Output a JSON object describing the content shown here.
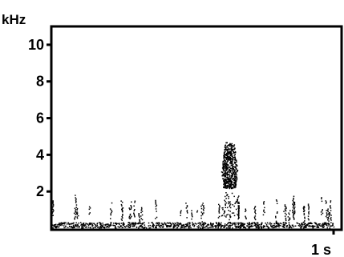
{
  "chart_data": {
    "type": "heatmap",
    "title": "",
    "ylabel": "kHz",
    "xlabel": "",
    "ylim": [
      0,
      11
    ],
    "xlim": [
      0,
      1.0
    ],
    "y_ticks": [
      "2",
      "4",
      "6",
      "8",
      "10"
    ],
    "y_tick_values": [
      2,
      4,
      6,
      8,
      10
    ],
    "x_tick_label": "1 s",
    "x_tick_value": 1.0,
    "grid": false,
    "colors": {
      "ink": "#000000",
      "background": "#ffffff"
    },
    "features": [
      {
        "name": "main call",
        "time_s": [
          0.6,
          0.66
        ],
        "freq_khz": [
          2.2,
          4.7
        ]
      },
      {
        "name": "low-frequency noise clicks",
        "time_s": [
          0.0,
          1.0
        ],
        "freq_khz": [
          0.3,
          1.5
        ]
      },
      {
        "name": "baseline noise band",
        "time_s": [
          0.0,
          1.0
        ],
        "freq_khz": [
          0.0,
          0.3
        ]
      }
    ]
  }
}
